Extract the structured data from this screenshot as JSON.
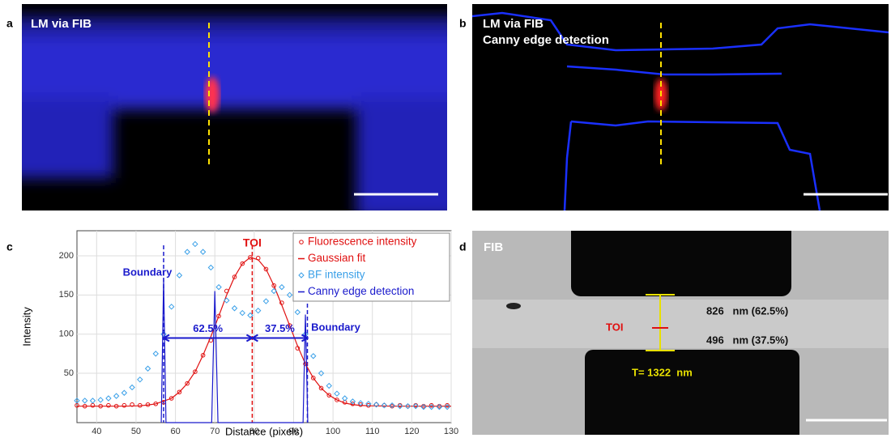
{
  "panels": [
    {
      "letter": "a",
      "label": "LM via FIB"
    },
    {
      "letter": "b",
      "label": "LM via FIB",
      "sublabel": "Canny edge detection"
    },
    {
      "letter": "c"
    },
    {
      "letter": "d",
      "label": "FIB",
      "toi": "TOI",
      "upper": "826   nm (62.5%)",
      "lower": "496   nm (37.5%)",
      "total": "T= 1322  nm"
    }
  ],
  "chart_data": {
    "type": "scatter",
    "xlabel": "Distance (pixels)",
    "ylabel": "Intensity",
    "xlim": [
      35,
      130
    ],
    "ylim": [
      -13,
      232
    ],
    "xticks": [
      40,
      50,
      60,
      70,
      80,
      90,
      100,
      110,
      120,
      130
    ],
    "yticks": [
      50,
      100,
      150,
      200
    ],
    "legend": "upper right",
    "annotations": {
      "toi": "TOI",
      "boundary_left": "Boundary",
      "boundary_right": "Boundary",
      "left_share": "62.5%",
      "right_share": "37.5%"
    },
    "reference_lines": [
      {
        "x": 57,
        "color": "#1a1acc"
      },
      {
        "x": 79.5,
        "color": "#e01010"
      },
      {
        "x": 93.5,
        "color": "#1a1acc"
      }
    ],
    "series": [
      {
        "name": "Fluorescence intensity",
        "color": "#e01010",
        "style": "circle",
        "x": [
          35,
          37,
          39,
          41,
          43,
          45,
          47,
          49,
          51,
          53,
          55,
          57,
          59,
          61,
          63,
          65,
          67,
          69,
          71,
          73,
          75,
          77,
          79,
          81,
          83,
          85,
          87,
          89,
          91,
          93,
          95,
          97,
          99,
          101,
          103,
          105,
          107,
          109,
          111,
          113,
          115,
          117,
          119,
          121,
          123,
          125,
          127,
          129
        ],
        "values": [
          9,
          8,
          9,
          8,
          9,
          8,
          9,
          10,
          9,
          10,
          11,
          13,
          18,
          26,
          37,
          52,
          73,
          92,
          123,
          155,
          173,
          190,
          198,
          197,
          183,
          162,
          140,
          111,
          82,
          62,
          44,
          31,
          22,
          16,
          13,
          11,
          10,
          9,
          10,
          9,
          8,
          9,
          8,
          9,
          8,
          9,
          8,
          9
        ]
      },
      {
        "name": "Gaussian fit",
        "color": "#e01010",
        "style": "line",
        "x": [
          35,
          39,
          43,
          47,
          51,
          53,
          55,
          57,
          59,
          61,
          63,
          65,
          67,
          69,
          71,
          73,
          75,
          77,
          79,
          81,
          83,
          85,
          87,
          89,
          91,
          93,
          95,
          97,
          99,
          101,
          103,
          105,
          107,
          109,
          115,
          122,
          130
        ],
        "values": [
          8,
          8,
          8,
          8,
          8.5,
          9.5,
          11,
          14.5,
          18,
          26,
          37,
          52,
          73,
          97,
          123,
          150,
          173,
          190,
          198,
          195,
          183,
          162,
          137,
          111,
          85,
          62,
          44,
          31,
          22,
          16,
          12,
          10,
          9,
          8.5,
          8,
          8,
          8
        ]
      },
      {
        "name": "BF intensity",
        "color": "#3aa0e8",
        "style": "diamond",
        "x": [
          35,
          37,
          39,
          41,
          43,
          45,
          47,
          49,
          51,
          53,
          55,
          57,
          59,
          61,
          63,
          65,
          67,
          69,
          71,
          73,
          75,
          77,
          79,
          81,
          83,
          85,
          87,
          89,
          91,
          93,
          95,
          97,
          99,
          101,
          103,
          105,
          107,
          109,
          111,
          113,
          115,
          117,
          119,
          121,
          123,
          125,
          127,
          129
        ],
        "values": [
          15,
          15,
          15,
          16,
          18,
          21,
          25,
          32,
          42,
          56,
          75,
          100,
          135,
          175,
          205,
          215,
          205,
          185,
          160,
          143,
          133,
          127,
          124,
          130,
          142,
          155,
          160,
          150,
          128,
          100,
          72,
          50,
          34,
          24,
          18,
          14,
          12,
          11,
          10,
          9,
          9,
          8,
          8,
          8,
          7,
          7,
          7,
          7
        ]
      },
      {
        "name": "Canny edge detection",
        "color": "#1a1acc",
        "style": "line",
        "x": [
          56.4,
          57,
          57.6,
          69.2,
          70,
          70.8,
          92.4,
          93,
          93.6
        ],
        "values": [
          -13,
          170,
          -13,
          -13,
          155,
          -13,
          -13,
          125,
          -13
        ]
      }
    ]
  }
}
